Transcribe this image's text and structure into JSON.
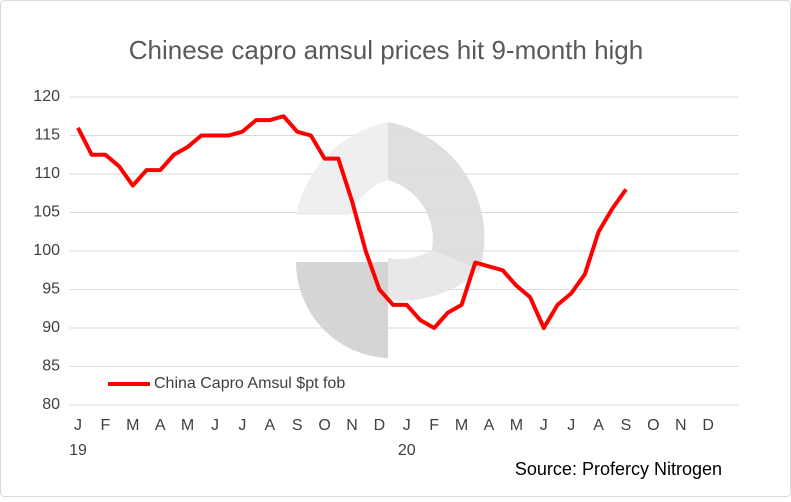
{
  "chart_data": {
    "type": "line",
    "title": "Chinese capro amsul prices hit 9-month high",
    "source": "Source: Profercy Nitrogen",
    "categories": [
      "J",
      null,
      "F",
      null,
      "M",
      null,
      "A",
      null,
      "M",
      null,
      "J",
      null,
      "J",
      null,
      "A",
      null,
      "S",
      null,
      "O",
      null,
      "N",
      null,
      "D",
      null,
      "J",
      null,
      "F",
      null,
      "M",
      null,
      "A",
      null,
      "M",
      null,
      "J",
      null,
      "J",
      null,
      "A",
      null,
      "S",
      null,
      "O",
      null,
      "N",
      null,
      "D",
      null
    ],
    "year_labels": [
      "19",
      null,
      null,
      null,
      null,
      null,
      null,
      null,
      null,
      null,
      null,
      null,
      null,
      null,
      null,
      null,
      null,
      null,
      null,
      null,
      null,
      null,
      null,
      null,
      "20",
      null,
      null,
      null,
      null,
      null,
      null,
      null,
      null,
      null,
      null,
      null,
      null,
      null,
      null,
      null,
      null,
      null,
      null,
      null,
      null,
      null,
      null,
      null
    ],
    "series": [
      {
        "name": "China Capro Amsul $pt fob",
        "color": "#ff0000",
        "values": [
          116,
          112.5,
          112.5,
          111,
          108.5,
          110.5,
          110.5,
          112.5,
          113.5,
          115,
          115,
          115,
          115.5,
          117,
          117,
          117.5,
          115.5,
          115,
          112,
          112,
          106.5,
          100,
          95,
          93,
          93,
          91,
          90,
          92,
          93,
          98.5,
          98,
          97.5,
          95.5,
          94,
          90,
          93,
          94.5,
          97,
          102.5,
          105.5,
          108,
          null,
          null,
          null,
          null,
          null,
          null,
          null
        ]
      }
    ],
    "ylim": [
      80,
      120
    ],
    "yticks": [
      80,
      85,
      90,
      95,
      100,
      105,
      110,
      115,
      120
    ],
    "grid": true,
    "legend": "lower left"
  }
}
